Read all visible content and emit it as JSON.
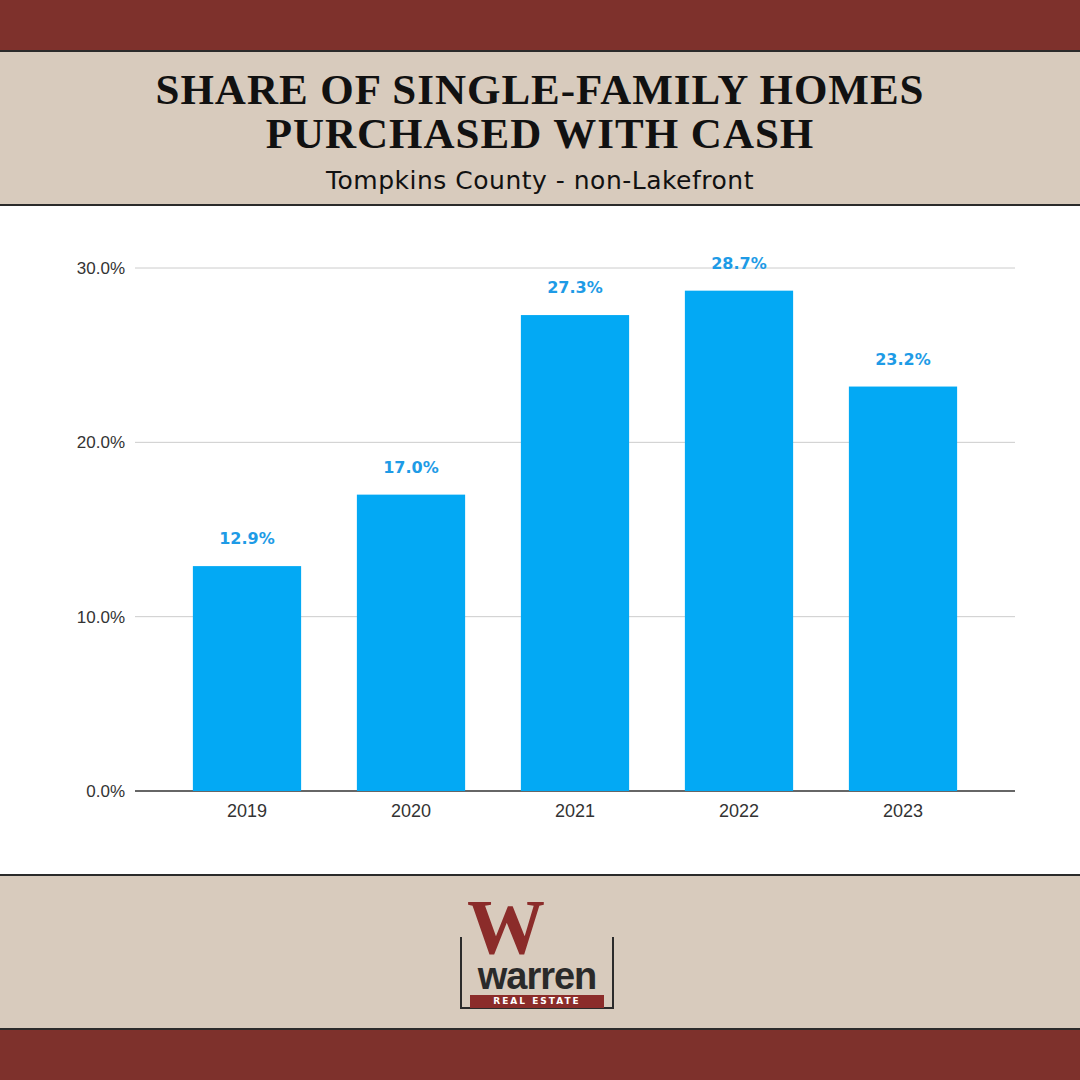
{
  "chart_data": {
    "type": "bar",
    "title": "SHARE OF SINGLE-FAMILY HOMES PURCHASED WITH CASH",
    "subtitle": "Tompkins County - non-Lakefront",
    "categories": [
      "2019",
      "2020",
      "2021",
      "2022",
      "2023"
    ],
    "values": [
      12.9,
      17.0,
      27.3,
      28.7,
      23.2
    ],
    "value_labels": [
      "12.9%",
      "17.0%",
      "27.3%",
      "28.7%",
      "23.2%"
    ],
    "color": "#03a9f4",
    "ylim": [
      0,
      30
    ],
    "yticks": [
      {
        "value": 0,
        "label": "0.0%"
      },
      {
        "value": 10,
        "label": "10.0%"
      },
      {
        "value": 20,
        "label": "20.0%"
      },
      {
        "value": 30,
        "label": "30.0%"
      }
    ],
    "grid": true,
    "data_labels": true
  },
  "branding": {
    "logo_mark": "W",
    "logo_name": "warren",
    "logo_tagline": "REAL ESTATE"
  }
}
